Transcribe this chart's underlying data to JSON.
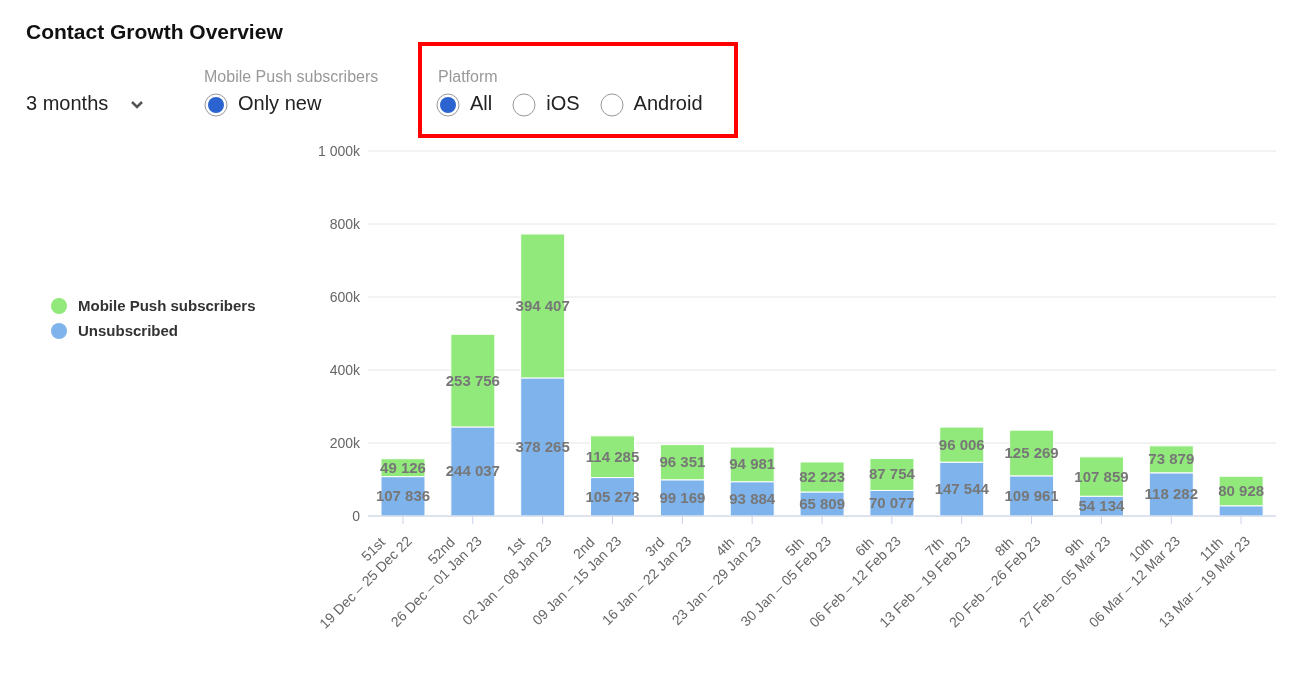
{
  "chart_data": {
    "type": "bar",
    "title": "Contact Growth Overview",
    "annotations": [
      "3 months",
      "Mobile Push subscribers",
      "Only new",
      "Platform",
      "All",
      "iOS",
      "Android"
    ],
    "categories": [
      "51st\n19 Dec – 25 Dec 22",
      "52nd\n26 Dec – 01 Jan 23",
      "1st\n02 Jan – 08 Jan 23",
      "2nd\n09 Jan – 15 Jan 23",
      "3rd\n16 Jan – 22 Jan 23",
      "4th\n23 Jan – 29 Jan 23",
      "5th\n30 Jan – 05 Feb 23",
      "6th\n06 Feb – 12 Feb 23",
      "7th\n13 Feb – 19 Feb 23",
      "8th\n20 Feb – 26 Feb 23",
      "9th\n27 Feb – 05 Mar 23",
      "10th\n06 Mar – 12 Mar 23",
      "11th\n13 Mar – 19 Mar 23"
    ],
    "stacked": true,
    "series": [
      {
        "name": "Unsubscribed",
        "color": "#7eb3ec",
        "values": [
          107836,
          244037,
          378265,
          105273,
          99169,
          93884,
          65809,
          70077,
          147544,
          109961,
          54134,
          118282,
          28000
        ],
        "value_labels": [
          "107 836",
          "244 037",
          "378 265",
          "105 273",
          "99 169",
          "93 884",
          "65 809",
          "70 077",
          "147 544",
          "109 961",
          "54 134",
          "118 282",
          null
        ]
      },
      {
        "name": "Mobile Push subscribers",
        "color": "#90e97a",
        "values": [
          49126,
          253756,
          394407,
          114285,
          96351,
          94981,
          82223,
          87754,
          96006,
          125269,
          107859,
          73879,
          80928
        ],
        "value_labels": [
          "49 126",
          "253 756",
          "394 407",
          "114 285",
          "96 351",
          "94 981",
          "82 223",
          "87 754",
          "96 006",
          "125 269",
          "107 859",
          "73 879",
          "80 928"
        ]
      }
    ],
    "ylim": [
      0,
      1000000
    ],
    "yticks": [
      0,
      {
        "value": 200000,
        "label": "200k"
      },
      {
        "value": 400000,
        "label": "400k"
      },
      {
        "value": 600000,
        "label": "600k"
      },
      {
        "value": 800000,
        "label": "800k"
      },
      {
        "value": 1000000,
        "label": "1 000k"
      }
    ],
    "grid": "y",
    "legend": "left"
  }
}
